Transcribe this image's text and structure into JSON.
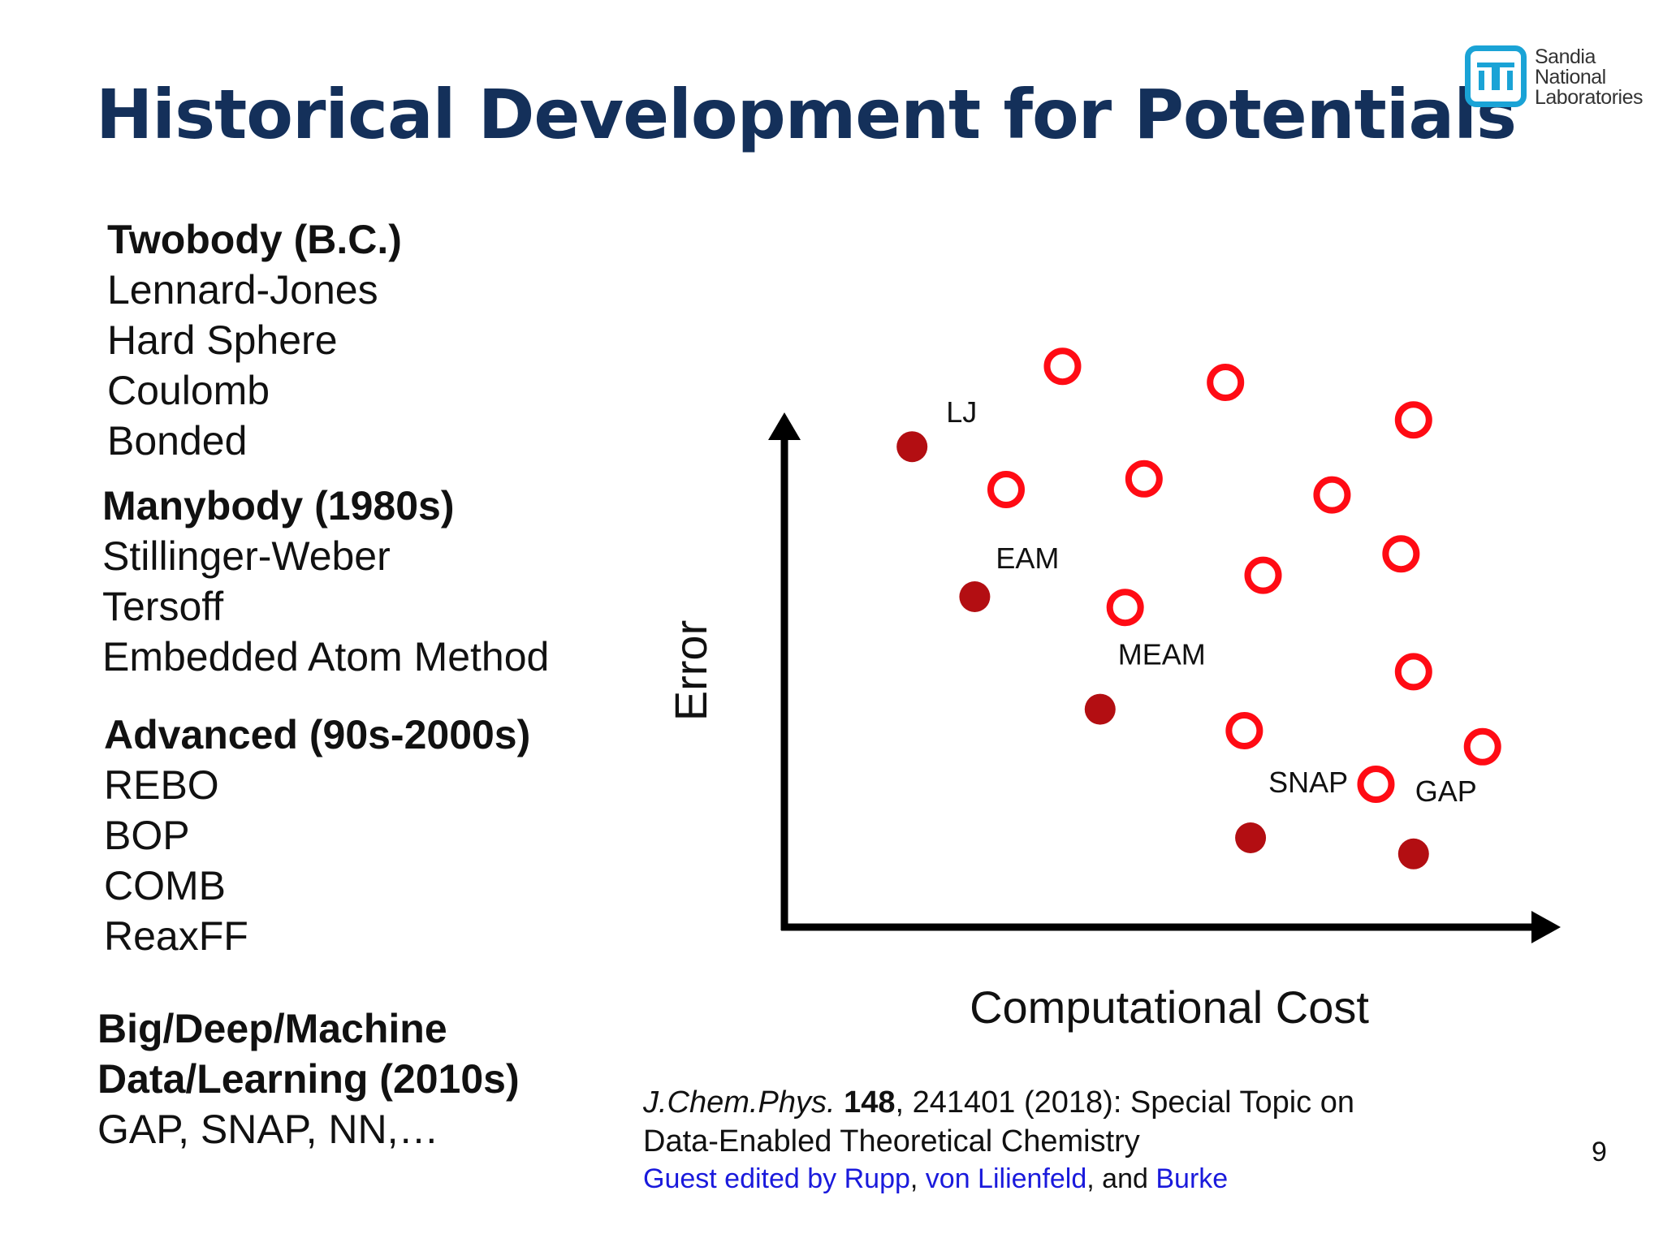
{
  "slide": {
    "title": "Historical Development for Potentials",
    "logo": {
      "line1": "Sandia",
      "line2": "National",
      "line3": "Laboratories"
    },
    "page_number": "9"
  },
  "groups": [
    {
      "head": "Twobody (B.C.)",
      "items": [
        "Lennard-Jones",
        "Hard Sphere",
        "Coulomb",
        "Bonded"
      ]
    },
    {
      "head": "Manybody (1980s)",
      "items": [
        "Stillinger-Weber",
        "Tersoff",
        "Embedded Atom Method"
      ]
    },
    {
      "head": "Advanced (90s-2000s)",
      "items": [
        "REBO",
        "BOP",
        "COMB",
        "ReaxFF"
      ]
    },
    {
      "head_line1": "Big/Deep/Machine",
      "head_line2": "Data/Learning (2010s)",
      "items": [
        "GAP, SNAP, NN,…"
      ]
    }
  ],
  "citation": {
    "journal": "J.Chem.Phys.",
    "volume": "148",
    "rest_line1": ", 241401 (2018): Special Topic on",
    "line2": "Data-Enabled Theoretical Chemistry",
    "line3_prefix": "Guest edited by ",
    "editor1": "Rupp",
    "sep1": ", ",
    "editor2": "von Lilienfeld",
    "sep2": ", and ",
    "editor3": "Burke"
  },
  "chart_data": {
    "type": "scatter",
    "title": "",
    "xlabel": "Computational Cost",
    "ylabel": "Error",
    "xlim": [
      0,
      100
    ],
    "ylim": [
      0,
      100
    ],
    "grid": false,
    "axis_ticks": false,
    "colors": {
      "filled": "#b30e12",
      "open": "#ff0b14",
      "axis": "#000000"
    },
    "series": [
      {
        "style": "filled",
        "points": [
          {
            "label": "LJ",
            "x": 10,
            "y": 83
          },
          {
            "label": "EAM",
            "x": 20,
            "y": 55
          },
          {
            "label": "MEAM",
            "x": 40,
            "y": 34
          },
          {
            "label": "SNAP",
            "x": 64,
            "y": 10
          },
          {
            "label": "GAP",
            "x": 90,
            "y": 7
          }
        ]
      },
      {
        "style": "open",
        "points": [
          {
            "x": 34,
            "y": 98
          },
          {
            "x": 60,
            "y": 95
          },
          {
            "x": 90,
            "y": 88
          },
          {
            "x": 25,
            "y": 75
          },
          {
            "x": 47,
            "y": 77
          },
          {
            "x": 77,
            "y": 74
          },
          {
            "x": 88,
            "y": 63
          },
          {
            "x": 66,
            "y": 59
          },
          {
            "x": 44,
            "y": 53
          },
          {
            "x": 90,
            "y": 41
          },
          {
            "x": 63,
            "y": 30
          },
          {
            "x": 101,
            "y": 27
          },
          {
            "x": 84,
            "y": 20
          }
        ]
      }
    ]
  }
}
